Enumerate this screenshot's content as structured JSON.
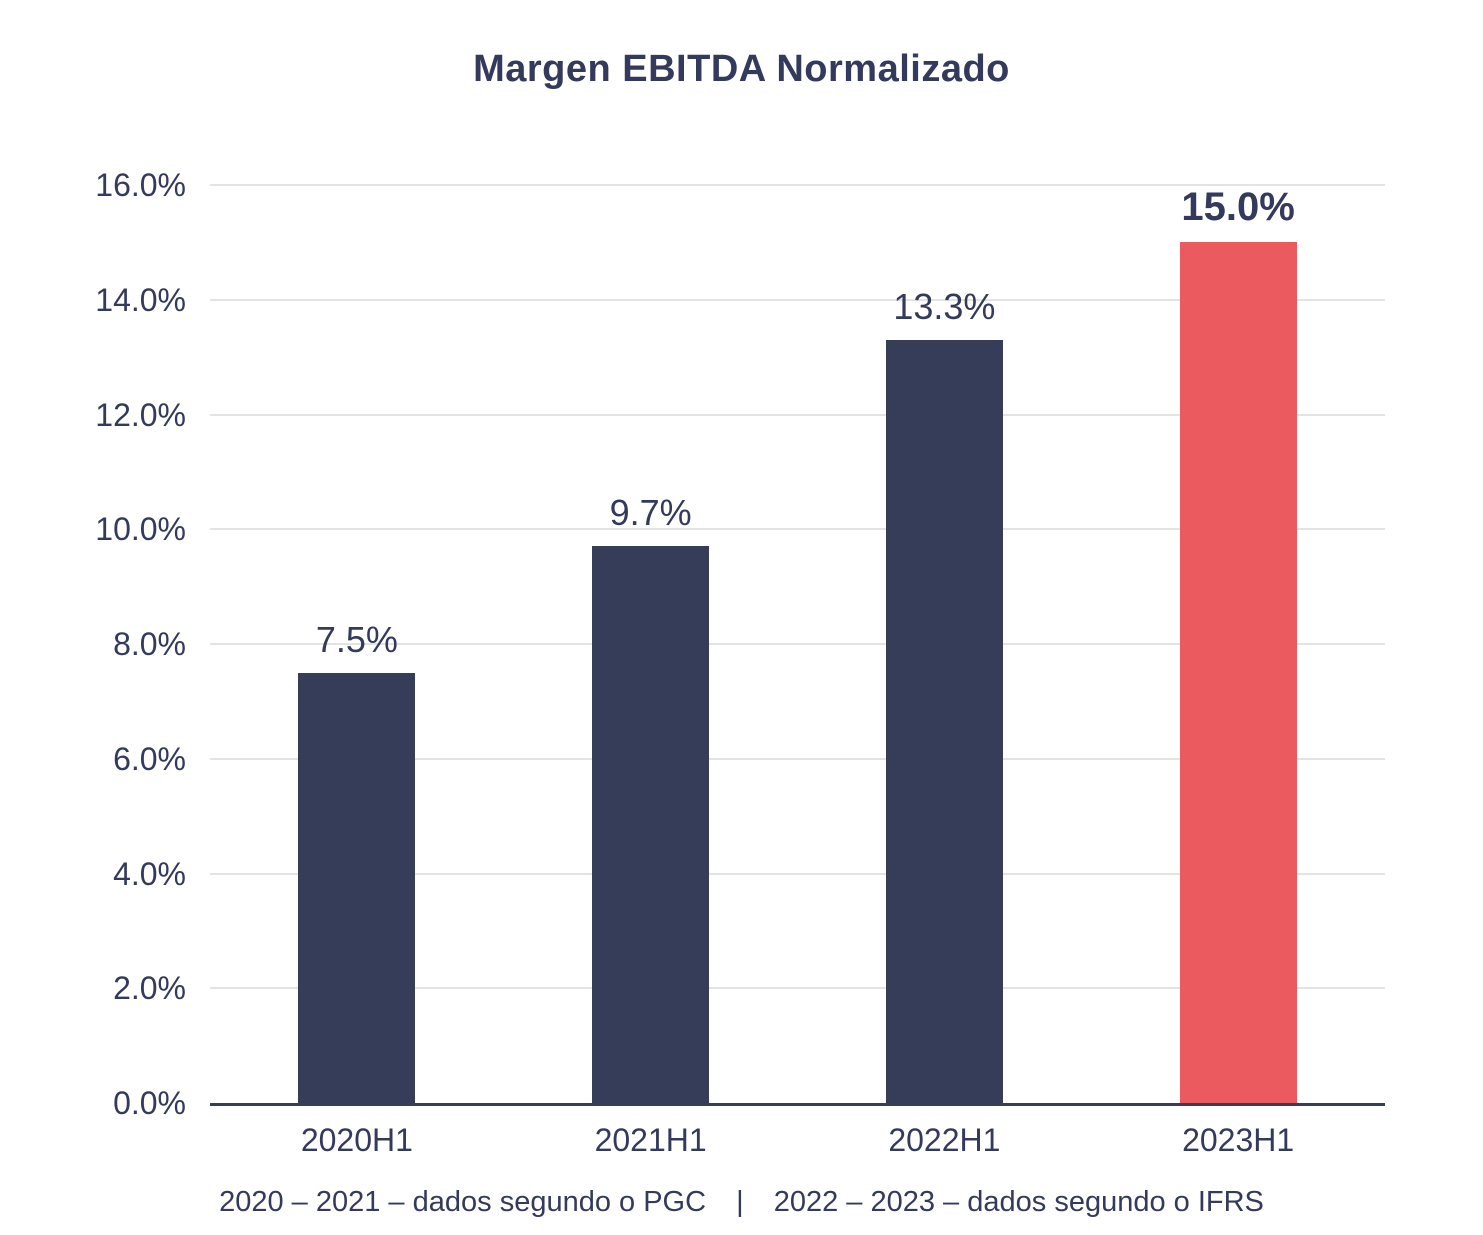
{
  "chart_data": {
    "type": "bar",
    "title": "Margen EBITDA Normalizado",
    "categories": [
      "2020H1",
      "2021H1",
      "2022H1",
      "2023H1"
    ],
    "values": [
      7.5,
      9.7,
      13.3,
      15.0
    ],
    "value_labels": [
      "7.5%",
      "9.7%",
      "13.3%",
      "15.0%"
    ],
    "highlight_index": 3,
    "ylim": [
      0,
      16
    ],
    "ytick_step": 2,
    "ytick_labels": [
      "0.0%",
      "2.0%",
      "4.0%",
      "6.0%",
      "8.0%",
      "10.0%",
      "12.0%",
      "14.0%",
      "16.0%"
    ],
    "grid": "horizontal-light",
    "legend_position": "none",
    "xlabel": "",
    "ylabel": "",
    "footnote": {
      "left": "2020 – 2021 – dados segundo o PGC",
      "separator": "|",
      "right": "2022 – 2023 – dados segundo o IFRS"
    },
    "colors": {
      "bar_default": "#363D59",
      "bar_highlight": "#EA5A5E",
      "text": "#333A5C",
      "gridline": "#E3E3E3",
      "axis": "#363D59"
    }
  }
}
